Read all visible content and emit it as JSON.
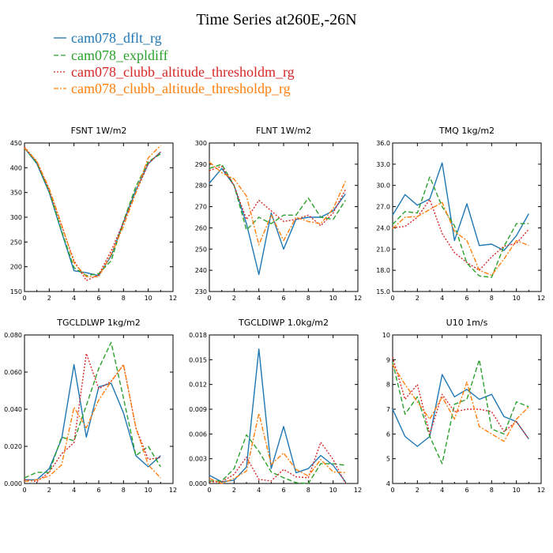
{
  "title": "Time Series at260E,-26N",
  "series_styles": [
    {
      "name": "cam078_dflt_rg",
      "color": "#1f77b4",
      "dash": "solid"
    },
    {
      "name": "cam078_expldiff",
      "color": "#2ca02c",
      "dash": "dashed"
    },
    {
      "name": "cam078_clubb_altitude_thresholdm_rg",
      "color": "#d62728",
      "dash": "dotted"
    },
    {
      "name": "cam078_clubb_altitude_thresholdp_rg",
      "color": "#ff7f0e",
      "dash": "dashdot"
    }
  ],
  "chart_data": [
    {
      "type": "line",
      "title": "FSNT   1W/m2",
      "xlim": [
        0,
        12
      ],
      "xticks": [
        0,
        2,
        4,
        6,
        8,
        10,
        12
      ],
      "xticklabels": [
        "0",
        "2",
        "4",
        "6",
        "8",
        "10",
        "12"
      ],
      "ylim": [
        150,
        450
      ],
      "yticks": [
        150,
        200,
        250,
        300,
        350,
        400,
        450
      ],
      "yticklabels": [
        "150",
        "200",
        "250",
        "300",
        "350",
        "400",
        "450"
      ],
      "x": [
        0,
        1,
        2,
        3,
        4,
        5,
        6,
        7,
        8,
        9,
        10,
        11
      ],
      "series": [
        {
          "name": "cam078_dflt_rg",
          "values": [
            440,
            408,
            350,
            270,
            192,
            188,
            182,
            222,
            290,
            355,
            408,
            432
          ]
        },
        {
          "name": "cam078_expldiff",
          "values": [
            440,
            410,
            352,
            272,
            198,
            182,
            186,
            212,
            292,
            362,
            412,
            428
          ]
        },
        {
          "name": "cam078_clubb_altitude_thresholdm_rg",
          "values": [
            442,
            412,
            355,
            282,
            212,
            172,
            184,
            232,
            290,
            350,
            408,
            432
          ]
        },
        {
          "name": "cam078_clubb_altitude_thresholdp_rg",
          "values": [
            440,
            413,
            358,
            285,
            208,
            180,
            180,
            225,
            282,
            350,
            420,
            445
          ]
        }
      ]
    },
    {
      "type": "line",
      "title": "FLNT   1W/m2",
      "xlim": [
        0,
        12
      ],
      "xticks": [
        0,
        2,
        4,
        6,
        8,
        10,
        12
      ],
      "xticklabels": [
        "0",
        "2",
        "4",
        "6",
        "8",
        "10",
        "12"
      ],
      "ylim": [
        230,
        300
      ],
      "yticks": [
        230,
        240,
        250,
        260,
        270,
        280,
        290,
        300
      ],
      "yticklabels": [
        "230",
        "240",
        "250",
        "260",
        "270",
        "280",
        "290",
        "300"
      ],
      "x": [
        0,
        1,
        2,
        3,
        4,
        5,
        6,
        7,
        8,
        9,
        10,
        11
      ],
      "series": [
        {
          "name": "cam078_dflt_rg",
          "values": [
            281,
            288,
            280,
            262,
            238,
            267,
            250,
            264,
            265,
            265,
            268,
            276
          ]
        },
        {
          "name": "cam078_expldiff",
          "values": [
            288,
            290,
            280,
            259,
            265,
            262,
            266,
            266,
            274,
            265,
            264,
            273
          ]
        },
        {
          "name": "cam078_clubb_altitude_thresholdm_rg",
          "values": [
            287,
            289,
            280,
            264,
            273,
            268,
            263,
            264,
            266,
            261,
            267,
            278
          ]
        },
        {
          "name": "cam078_clubb_altitude_thresholdp_rg",
          "values": [
            291,
            286,
            283,
            275,
            252,
            266,
            254,
            265,
            263,
            262,
            269,
            282
          ]
        }
      ]
    },
    {
      "type": "line",
      "title": "TMQ   1kg/m2",
      "xlim": [
        0,
        12
      ],
      "xticks": [
        0,
        2,
        4,
        6,
        8,
        10,
        12
      ],
      "xticklabels": [
        "0",
        "2",
        "4",
        "6",
        "8",
        "10",
        "12"
      ],
      "ylim": [
        15,
        36
      ],
      "yticks": [
        15,
        18,
        21,
        24,
        27,
        30,
        33,
        36
      ],
      "yticklabels": [
        "15.0",
        "18.0",
        "21.0",
        "24.0",
        "27.0",
        "30.0",
        "33.0",
        "36.0"
      ],
      "x": [
        0,
        1,
        2,
        3,
        4,
        5,
        6,
        7,
        8,
        9,
        10,
        11
      ],
      "series": [
        {
          "name": "cam078_dflt_rg",
          "values": [
            25.8,
            28.7,
            27.2,
            28.1,
            33.2,
            22.2,
            27.4,
            21.5,
            21.7,
            20.8,
            22.9,
            26.0
          ]
        },
        {
          "name": "cam078_expldiff",
          "values": [
            24.5,
            26.3,
            26.1,
            31.2,
            27.0,
            24.3,
            19.0,
            17.2,
            17.0,
            21.4,
            24.6,
            24.6
          ]
        },
        {
          "name": "cam078_clubb_altitude_thresholdm_rg",
          "values": [
            24.0,
            24.2,
            25.5,
            28.0,
            23.2,
            20.5,
            19.1,
            18.0,
            19.9,
            21.4,
            21.8,
            23.8
          ]
        },
        {
          "name": "cam078_clubb_altitude_thresholdp_rg",
          "values": [
            23.9,
            25.5,
            25.6,
            26.6,
            27.6,
            23.5,
            22.2,
            18.0,
            17.3,
            19.6,
            22.2,
            21.5
          ]
        }
      ]
    },
    {
      "type": "line",
      "title": "TGCLDLWP   1kg/m2",
      "xlim": [
        0,
        12
      ],
      "xticks": [
        0,
        2,
        4,
        6,
        8,
        10,
        12
      ],
      "xticklabels": [
        "0",
        "2",
        "4",
        "6",
        "8",
        "10",
        "12"
      ],
      "ylim": [
        0,
        0.08
      ],
      "yticks": [
        0,
        0.02,
        0.04,
        0.06,
        0.08
      ],
      "yticklabels": [
        "0.000",
        "0.020",
        "0.040",
        "0.060",
        "0.080"
      ],
      "x": [
        0,
        1,
        2,
        3,
        4,
        5,
        6,
        7,
        8,
        9,
        10,
        11
      ],
      "series": [
        {
          "name": "cam078_dflt_rg",
          "values": [
            0.002,
            0.002,
            0.008,
            0.024,
            0.064,
            0.025,
            0.052,
            0.054,
            0.038,
            0.015,
            0.009,
            0.015
          ]
        },
        {
          "name": "cam078_expldiff",
          "values": [
            0.003,
            0.006,
            0.006,
            0.025,
            0.023,
            0.042,
            0.062,
            0.076,
            0.046,
            0.015,
            0.02,
            0.009
          ]
        },
        {
          "name": "cam078_clubb_altitude_thresholdm_rg",
          "values": [
            0.002,
            0.001,
            0.006,
            0.016,
            0.022,
            0.07,
            0.051,
            0.055,
            0.064,
            0.03,
            0.013,
            0.014
          ]
        },
        {
          "name": "cam078_clubb_altitude_thresholdp_rg",
          "values": [
            0.001,
            0.002,
            0.004,
            0.01,
            0.041,
            0.03,
            0.045,
            0.055,
            0.064,
            0.03,
            0.01,
            0.003
          ]
        }
      ]
    },
    {
      "type": "line",
      "title": "TGCLDIWP   1.0kg/m2",
      "xlim": [
        0,
        12
      ],
      "xticks": [
        0,
        2,
        4,
        6,
        8,
        10,
        12
      ],
      "xticklabels": [
        "0",
        "2",
        "4",
        "6",
        "8",
        "10",
        "12"
      ],
      "ylim": [
        0,
        0.018
      ],
      "yticks": [
        0,
        0.003,
        0.006,
        0.009,
        0.012,
        0.015,
        0.018
      ],
      "yticklabels": [
        "0.000",
        "0.003",
        "0.006",
        "0.009",
        "0.012",
        "0.015",
        "0.018"
      ],
      "x": [
        0,
        1,
        2,
        3,
        4,
        5,
        6,
        7,
        8,
        9,
        10,
        11
      ],
      "series": [
        {
          "name": "cam078_dflt_rg",
          "values": [
            0.001,
            0.0002,
            0.0004,
            0.002,
            0.0163,
            0.0018,
            0.0069,
            0.0013,
            0.0018,
            0.0034,
            0.0022,
            0.0002
          ]
        },
        {
          "name": "cam078_expldiff",
          "values": [
            0.0003,
            0.0003,
            0.0018,
            0.0059,
            0.0039,
            0.0014,
            0.0007,
            0.0001,
            0.0,
            0.0024,
            0.0024,
            0.0022
          ]
        },
        {
          "name": "cam078_clubb_altitude_thresholdm_rg",
          "values": [
            0.0002,
            0.0002,
            0.0011,
            0.0032,
            0.0005,
            0.0003,
            0.0017,
            0.0008,
            0.0007,
            0.005,
            0.0029,
            0.0
          ]
        },
        {
          "name": "cam078_clubb_altitude_thresholdp_rg",
          "values": [
            0.0006,
            0.0,
            0.0006,
            0.0015,
            0.0085,
            0.0023,
            0.0037,
            0.0017,
            0.0009,
            0.0029,
            0.0014,
            0.0013
          ]
        }
      ]
    },
    {
      "type": "line",
      "title": "U10   1m/s",
      "xlim": [
        0,
        12
      ],
      "xticks": [
        0,
        2,
        4,
        6,
        8,
        10,
        12
      ],
      "xticklabels": [
        "0",
        "2",
        "4",
        "6",
        "8",
        "10",
        "12"
      ],
      "ylim": [
        4,
        10
      ],
      "yticks": [
        4,
        5,
        6,
        7,
        8,
        9,
        10
      ],
      "yticklabels": [
        "4",
        "5",
        "6",
        "7",
        "8",
        "9",
        "10"
      ],
      "x": [
        0,
        1,
        2,
        3,
        4,
        5,
        6,
        7,
        8,
        9,
        10,
        11
      ],
      "series": [
        {
          "name": "cam078_dflt_rg",
          "values": [
            7.0,
            5.9,
            5.5,
            5.9,
            8.4,
            7.5,
            7.8,
            7.4,
            7.6,
            6.7,
            6.5,
            5.8
          ]
        },
        {
          "name": "cam078_expldiff",
          "values": [
            8.9,
            6.8,
            7.5,
            5.9,
            4.8,
            7.2,
            7.4,
            9.0,
            6.2,
            6.0,
            7.3,
            7.1
          ]
        },
        {
          "name": "cam078_clubb_altitude_thresholdm_rg",
          "values": [
            9.1,
            7.4,
            8.0,
            6.0,
            7.6,
            6.9,
            7.0,
            7.0,
            6.9,
            6.1,
            6.5,
            5.8
          ]
        },
        {
          "name": "cam078_clubb_altitude_thresholdp_rg",
          "values": [
            8.8,
            8.0,
            7.3,
            6.6,
            7.5,
            6.6,
            8.1,
            6.3,
            6.0,
            5.7,
            6.6,
            7.1
          ]
        }
      ]
    }
  ]
}
